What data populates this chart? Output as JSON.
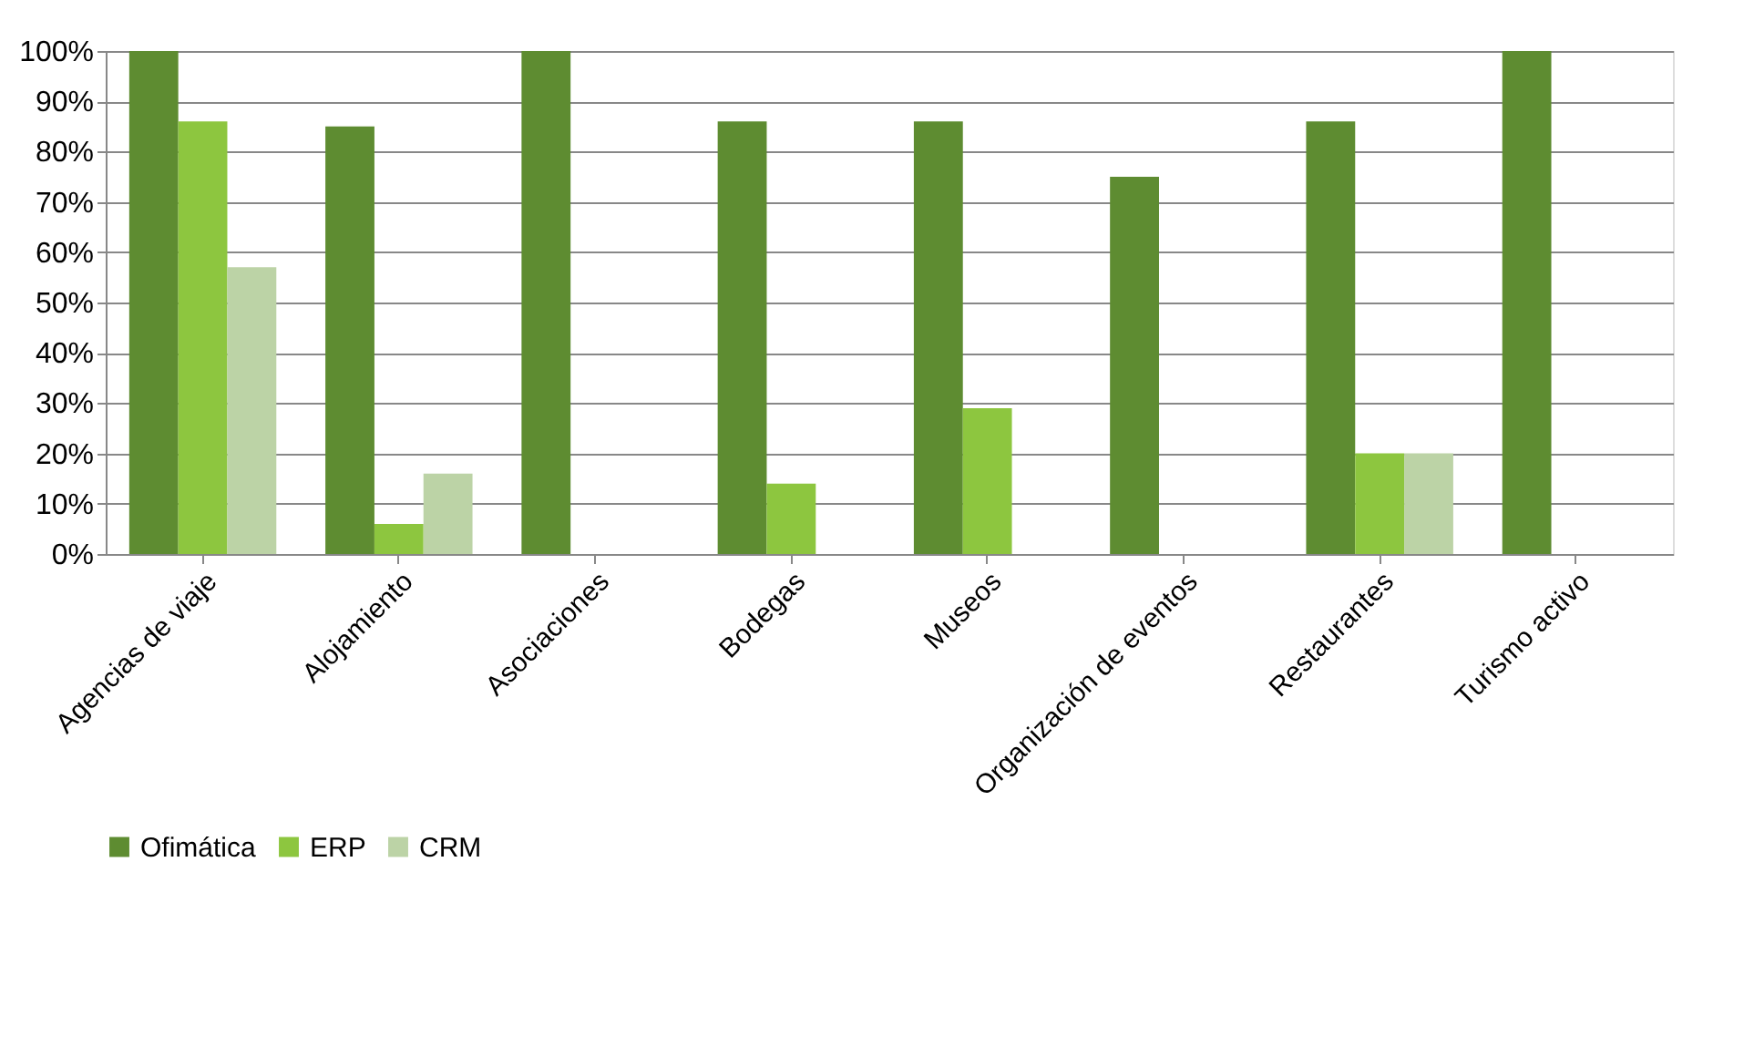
{
  "chart_data": {
    "type": "bar",
    "categories": [
      "Agencias de viaje",
      "Alojamiento",
      "Asociaciones",
      "Bodegas",
      "Museos",
      "Organización de eventos",
      "Restaurantes",
      "Turismo activo"
    ],
    "series": [
      {
        "name": "Ofimática",
        "color": "#5e8c31",
        "values": [
          100,
          85,
          100,
          86,
          86,
          75,
          86,
          100
        ]
      },
      {
        "name": "ERP",
        "color": "#8dc63f",
        "values": [
          86,
          6,
          null,
          14,
          29,
          null,
          20,
          null
        ]
      },
      {
        "name": "CRM",
        "color": "#bcd3a6",
        "values": [
          57,
          16,
          null,
          null,
          null,
          null,
          20,
          null
        ]
      }
    ],
    "ylim": [
      0,
      100
    ],
    "yticks": [
      {
        "value": 0,
        "label": "0%"
      },
      {
        "value": 10,
        "label": "10%"
      },
      {
        "value": 20,
        "label": "20%"
      },
      {
        "value": 30,
        "label": "30%"
      },
      {
        "value": 40,
        "label": "40%"
      },
      {
        "value": 50,
        "label": "50%"
      },
      {
        "value": 60,
        "label": "60%"
      },
      {
        "value": 70,
        "label": "70%"
      },
      {
        "value": 80,
        "label": "80%"
      },
      {
        "value": 90,
        "label": "90%"
      },
      {
        "value": 100,
        "label": "100%"
      }
    ],
    "grid": "y",
    "legend": "bottom"
  }
}
